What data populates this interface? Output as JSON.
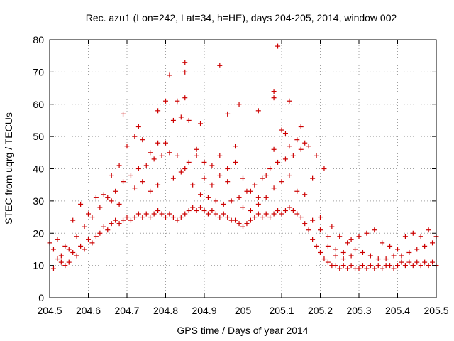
{
  "chart_data": {
    "type": "scatter",
    "title": "Rec. azu1 (Lon=242, Lat=34, h=HE), days 204-205, 2014, window 002",
    "xlabel": "GPS time / Days of year 2014",
    "ylabel": "STEC from uqrg / TECUs",
    "xlim": [
      204.5,
      205.5
    ],
    "ylim": [
      0,
      80
    ],
    "grid": true,
    "marker": "plus",
    "color": "#cc0000",
    "x_ticks": [
      204.5,
      204.6,
      204.7,
      204.8,
      204.9,
      205,
      205.1,
      205.2,
      205.3,
      205.4,
      205.5
    ],
    "x_tick_labels": [
      "204.5",
      "204.6",
      "204.7",
      "204.8",
      "204.9",
      "205",
      "205.1",
      "205.2",
      "205.3",
      "205.4",
      "205.5"
    ],
    "y_ticks": [
      0,
      10,
      20,
      30,
      40,
      50,
      60,
      70,
      80
    ],
    "y_tick_labels": [
      "0",
      "10",
      "20",
      "30",
      "40",
      "50",
      "60",
      "70",
      "80"
    ],
    "series": [
      {
        "points": [
          [
            204.5,
            17
          ],
          [
            204.51,
            15
          ],
          [
            204.52,
            12
          ],
          [
            204.53,
            13
          ],
          [
            204.54,
            10
          ],
          [
            204.55,
            11
          ],
          [
            204.56,
            14
          ],
          [
            204.57,
            13
          ],
          [
            204.58,
            16
          ],
          [
            204.59,
            15
          ],
          [
            204.6,
            18
          ],
          [
            204.61,
            17
          ],
          [
            204.62,
            19
          ],
          [
            204.63,
            20
          ],
          [
            204.64,
            22
          ],
          [
            204.65,
            21
          ],
          [
            204.66,
            23
          ],
          [
            204.67,
            24
          ],
          [
            204.68,
            23
          ],
          [
            204.69,
            24
          ],
          [
            204.7,
            25
          ],
          [
            204.71,
            24
          ],
          [
            204.72,
            25
          ],
          [
            204.73,
            26
          ],
          [
            204.74,
            25
          ],
          [
            204.75,
            26
          ],
          [
            204.76,
            25
          ],
          [
            204.77,
            26
          ],
          [
            204.78,
            27
          ],
          [
            204.79,
            26
          ],
          [
            204.8,
            25
          ],
          [
            204.81,
            26
          ],
          [
            204.82,
            25
          ],
          [
            204.83,
            24
          ],
          [
            204.84,
            25
          ],
          [
            204.85,
            26
          ],
          [
            204.86,
            27
          ],
          [
            204.87,
            28
          ],
          [
            204.88,
            27
          ],
          [
            204.89,
            28
          ],
          [
            204.9,
            27
          ],
          [
            204.91,
            26
          ],
          [
            204.92,
            27
          ],
          [
            204.93,
            26
          ],
          [
            204.94,
            25
          ],
          [
            204.95,
            26
          ],
          [
            204.96,
            25
          ],
          [
            204.97,
            24
          ],
          [
            204.98,
            24
          ],
          [
            204.99,
            23
          ],
          [
            205.0,
            22
          ],
          [
            205.01,
            23
          ],
          [
            205.02,
            24
          ],
          [
            205.03,
            25
          ],
          [
            205.04,
            26
          ],
          [
            205.05,
            25
          ],
          [
            205.06,
            26
          ],
          [
            205.07,
            25
          ],
          [
            205.08,
            26
          ],
          [
            205.09,
            27
          ],
          [
            205.1,
            26
          ],
          [
            205.11,
            27
          ],
          [
            205.12,
            28
          ],
          [
            205.13,
            27
          ],
          [
            205.14,
            26
          ],
          [
            205.15,
            25
          ],
          [
            205.16,
            23
          ],
          [
            205.17,
            21
          ],
          [
            205.18,
            18
          ],
          [
            205.19,
            16
          ],
          [
            205.2,
            14
          ],
          [
            205.21,
            12
          ],
          [
            205.22,
            11
          ],
          [
            205.23,
            10
          ],
          [
            205.24,
            10
          ],
          [
            205.25,
            9
          ],
          [
            205.26,
            10
          ],
          [
            205.27,
            9
          ],
          [
            205.28,
            10
          ],
          [
            205.29,
            9
          ],
          [
            205.3,
            9
          ],
          [
            205.31,
            10
          ],
          [
            205.32,
            9
          ],
          [
            205.33,
            10
          ],
          [
            205.34,
            9
          ],
          [
            205.35,
            10
          ],
          [
            205.36,
            9
          ],
          [
            205.37,
            10
          ],
          [
            205.38,
            10
          ],
          [
            205.39,
            9
          ],
          [
            205.4,
            10
          ],
          [
            205.41,
            11
          ],
          [
            205.42,
            10
          ],
          [
            205.43,
            11
          ],
          [
            205.44,
            10
          ],
          [
            205.45,
            11
          ],
          [
            205.46,
            10
          ],
          [
            205.47,
            11
          ],
          [
            205.48,
            10
          ],
          [
            205.49,
            11
          ],
          [
            205.5,
            10
          ],
          [
            204.51,
            9
          ],
          [
            204.53,
            11
          ],
          [
            204.55,
            15
          ],
          [
            204.57,
            19
          ],
          [
            204.59,
            22
          ],
          [
            204.61,
            25
          ],
          [
            204.63,
            28
          ],
          [
            204.65,
            31
          ],
          [
            204.67,
            33
          ],
          [
            204.69,
            36
          ],
          [
            204.71,
            38
          ],
          [
            204.73,
            40
          ],
          [
            204.75,
            41
          ],
          [
            204.77,
            43
          ],
          [
            204.79,
            44
          ],
          [
            204.81,
            45
          ],
          [
            204.83,
            44
          ],
          [
            204.85,
            40
          ],
          [
            204.87,
            35
          ],
          [
            204.89,
            32
          ],
          [
            204.91,
            31
          ],
          [
            204.93,
            30
          ],
          [
            204.95,
            29
          ],
          [
            204.97,
            30
          ],
          [
            204.99,
            31
          ],
          [
            205.01,
            33
          ],
          [
            205.03,
            35
          ],
          [
            205.05,
            37
          ],
          [
            205.07,
            40
          ],
          [
            205.09,
            42
          ],
          [
            205.11,
            43
          ],
          [
            205.13,
            44
          ],
          [
            205.15,
            46
          ],
          [
            205.17,
            47
          ],
          [
            205.19,
            44
          ],
          [
            205.21,
            40
          ],
          [
            205.23,
            22
          ],
          [
            205.25,
            19
          ],
          [
            205.27,
            17
          ],
          [
            205.29,
            15
          ],
          [
            205.31,
            14
          ],
          [
            205.33,
            13
          ],
          [
            205.35,
            12
          ],
          [
            205.37,
            12
          ],
          [
            205.39,
            13
          ],
          [
            205.41,
            13
          ],
          [
            205.43,
            14
          ],
          [
            205.45,
            15
          ],
          [
            205.47,
            16
          ],
          [
            205.49,
            17
          ],
          [
            204.52,
            18
          ],
          [
            204.54,
            16
          ],
          [
            204.56,
            24
          ],
          [
            204.58,
            29
          ],
          [
            204.6,
            26
          ],
          [
            204.62,
            31
          ],
          [
            204.64,
            32
          ],
          [
            204.66,
            38
          ],
          [
            204.68,
            41
          ],
          [
            204.7,
            47
          ],
          [
            204.72,
            50
          ],
          [
            204.74,
            49
          ],
          [
            204.76,
            45
          ],
          [
            204.78,
            48
          ],
          [
            204.8,
            48
          ],
          [
            204.82,
            55
          ],
          [
            204.84,
            56
          ],
          [
            204.86,
            55
          ],
          [
            204.88,
            46
          ],
          [
            204.9,
            42
          ],
          [
            204.92,
            41
          ],
          [
            204.94,
            44
          ],
          [
            204.96,
            40
          ],
          [
            204.98,
            47
          ],
          [
            205.0,
            37
          ],
          [
            205.02,
            33
          ],
          [
            205.04,
            31
          ],
          [
            205.06,
            38
          ],
          [
            205.08,
            46
          ],
          [
            205.1,
            52
          ],
          [
            205.12,
            47
          ],
          [
            205.14,
            49
          ],
          [
            205.16,
            48
          ],
          [
            205.18,
            37
          ],
          [
            205.2,
            25
          ],
          [
            205.22,
            19
          ],
          [
            205.24,
            15
          ],
          [
            205.26,
            14
          ],
          [
            205.28,
            18
          ],
          [
            205.3,
            19
          ],
          [
            205.32,
            20
          ],
          [
            205.34,
            21
          ],
          [
            205.36,
            17
          ],
          [
            205.38,
            16
          ],
          [
            205.4,
            15
          ],
          [
            205.42,
            19
          ],
          [
            205.44,
            20
          ],
          [
            205.46,
            19
          ],
          [
            205.48,
            21
          ],
          [
            205.5,
            19
          ],
          [
            204.69,
            57
          ],
          [
            204.73,
            53
          ],
          [
            204.78,
            58
          ],
          [
            204.8,
            61
          ],
          [
            204.81,
            69
          ],
          [
            204.83,
            61
          ],
          [
            204.85,
            73
          ],
          [
            204.85,
            70
          ],
          [
            204.85,
            62
          ],
          [
            204.89,
            54
          ],
          [
            204.94,
            72
          ],
          [
            204.96,
            57
          ],
          [
            204.99,
            60
          ],
          [
            205.04,
            58
          ],
          [
            205.08,
            64
          ],
          [
            205.08,
            62
          ],
          [
            205.09,
            78
          ],
          [
            205.11,
            51
          ],
          [
            205.12,
            61
          ],
          [
            205.15,
            53
          ],
          [
            204.66,
            30
          ],
          [
            204.68,
            29
          ],
          [
            204.72,
            34
          ],
          [
            204.74,
            36
          ],
          [
            204.76,
            33
          ],
          [
            204.78,
            35
          ],
          [
            204.82,
            37
          ],
          [
            204.84,
            39
          ],
          [
            204.86,
            42
          ],
          [
            204.88,
            44
          ],
          [
            204.9,
            37
          ],
          [
            204.92,
            35
          ],
          [
            204.94,
            38
          ],
          [
            204.96,
            36
          ],
          [
            204.98,
            42
          ],
          [
            205.0,
            28
          ],
          [
            205.02,
            27
          ],
          [
            205.04,
            29
          ],
          [
            205.06,
            31
          ],
          [
            205.08,
            34
          ],
          [
            205.1,
            36
          ],
          [
            205.12,
            38
          ],
          [
            205.14,
            33
          ],
          [
            205.16,
            32
          ],
          [
            205.18,
            24
          ],
          [
            205.2,
            21
          ],
          [
            205.22,
            16
          ],
          [
            205.24,
            13
          ],
          [
            205.26,
            12
          ],
          [
            205.28,
            13
          ]
        ]
      }
    ]
  }
}
